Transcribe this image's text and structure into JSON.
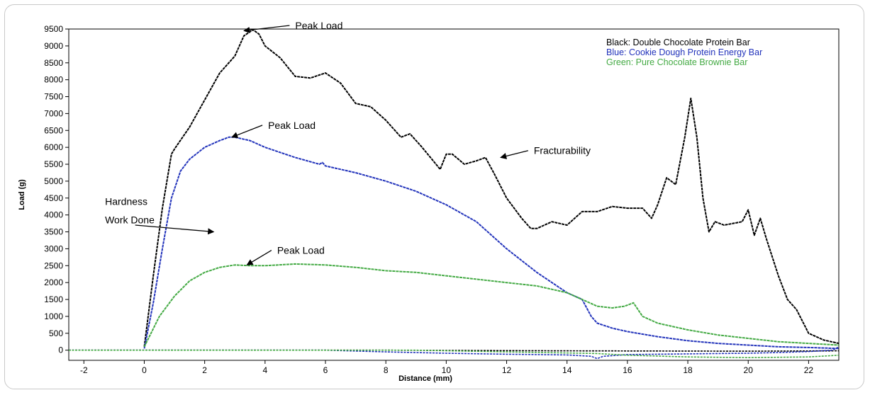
{
  "chart_data": {
    "type": "line",
    "xlabel": "Distance (mm)",
    "ylabel": "Load (g)",
    "xlim": [
      -2.5,
      23
    ],
    "ylim": [
      -300,
      9500
    ],
    "x_ticks": [
      -2,
      0,
      2,
      4,
      6,
      8,
      10,
      12,
      14,
      16,
      18,
      20,
      22
    ],
    "y_ticks": [
      0,
      500,
      1000,
      1500,
      2000,
      2500,
      3000,
      3500,
      4000,
      4500,
      5000,
      5500,
      6000,
      6500,
      7000,
      7500,
      8000,
      8500,
      9000,
      9500
    ],
    "grid": false,
    "legend_placement": "top-right",
    "legend": [
      {
        "label": "Black: Double Chocolate Protein Bar",
        "color": "#000000"
      },
      {
        "label": "Blue: Cookie Dough Protein Energy Bar",
        "color": "#2233bb"
      },
      {
        "label": "Green: Pure Chocolate Brownie Bar",
        "color": "#44aa44"
      }
    ],
    "series": [
      {
        "color": "#000000",
        "x": [
          0,
          0.3,
          0.6,
          0.9,
          1.0,
          1.5,
          2.0,
          2.5,
          3.0,
          3.3,
          3.6,
          3.8,
          4.0,
          4.5,
          5.0,
          5.5,
          6.0,
          6.5,
          7.0,
          7.5,
          8.0,
          8.5,
          8.8,
          9.2,
          9.8,
          10.0,
          10.2,
          10.6,
          11.0,
          11.3,
          11.6,
          12.0,
          12.5,
          12.8,
          13.0,
          13.5,
          14.0,
          14.5,
          15.0,
          15.5,
          16.0,
          16.5,
          16.8,
          17.0,
          17.3,
          17.6,
          17.9,
          18.1,
          18.3,
          18.5,
          18.7,
          18.9,
          19.2,
          19.5,
          19.8,
          20.0,
          20.2,
          20.4,
          20.6,
          21.0,
          21.3,
          21.6,
          22.0,
          22.5,
          23.0
        ],
        "y": [
          100,
          2200,
          4200,
          5800,
          5950,
          6600,
          7400,
          8200,
          8700,
          9300,
          9480,
          9350,
          9000,
          8650,
          8100,
          8050,
          8200,
          7900,
          7300,
          7200,
          6800,
          6300,
          6400,
          6000,
          5350,
          5800,
          5800,
          5500,
          5600,
          5700,
          5200,
          4500,
          3900,
          3600,
          3600,
          3800,
          3700,
          4100,
          4100,
          4250,
          4200,
          4200,
          3900,
          4300,
          5100,
          4900,
          6300,
          7450,
          6300,
          4500,
          3500,
          3800,
          3700,
          3750,
          3800,
          4150,
          3400,
          3900,
          3300,
          2200,
          1500,
          1200,
          500,
          300,
          200
        ]
      },
      {
        "color": "#2233bb",
        "x": [
          0,
          0.3,
          0.6,
          0.9,
          1.2,
          1.5,
          2.0,
          2.5,
          2.8,
          3.0,
          3.5,
          4.0,
          5.0,
          5.8,
          5.9,
          6.0,
          7.0,
          8.0,
          9.0,
          10.0,
          11.0,
          12.0,
          13.0,
          14.0,
          14.5,
          14.8,
          15.0,
          15.5,
          16.0,
          17.0,
          18.0,
          19.0,
          20.0,
          21.0,
          22.0,
          23.0
        ],
        "y": [
          50,
          1400,
          3000,
          4500,
          5300,
          5650,
          6000,
          6200,
          6300,
          6300,
          6200,
          6000,
          5700,
          5500,
          5550,
          5450,
          5250,
          5000,
          4700,
          4300,
          3800,
          3000,
          2300,
          1700,
          1500,
          1000,
          800,
          650,
          550,
          400,
          280,
          200,
          150,
          100,
          80,
          50
        ]
      },
      {
        "color": "#44aa44",
        "x": [
          0,
          0.5,
          1.0,
          1.5,
          2.0,
          2.5,
          3.0,
          3.5,
          4.0,
          5.0,
          6.0,
          7.0,
          8.0,
          9.0,
          10.0,
          11.0,
          12.0,
          13.0,
          14.0,
          14.5,
          15.0,
          15.5,
          15.9,
          16.2,
          16.5,
          17.0,
          18.0,
          19.0,
          20.0,
          21.0,
          22.0,
          23.0
        ],
        "y": [
          100,
          1000,
          1600,
          2050,
          2300,
          2450,
          2520,
          2500,
          2500,
          2550,
          2520,
          2450,
          2350,
          2300,
          2200,
          2100,
          2000,
          1900,
          1700,
          1500,
          1300,
          1250,
          1300,
          1400,
          1000,
          800,
          600,
          450,
          350,
          250,
          200,
          150
        ]
      }
    ],
    "return_curves": [
      {
        "color": "#000000",
        "x": [
          -2.5,
          8.0,
          14.0,
          20.0,
          23.0
        ],
        "y": [
          0,
          0,
          -20,
          -30,
          -20
        ]
      },
      {
        "color": "#2233bb",
        "x": [
          -2.5,
          6.0,
          8.0,
          10.0,
          12.0,
          14.0,
          14.8,
          15.0,
          15.2,
          16.0,
          17.0,
          18.0,
          19.0,
          20.0,
          21.0,
          22.0,
          22.8,
          23.0
        ],
        "y": [
          0,
          0,
          -50,
          -90,
          -120,
          -140,
          -180,
          -250,
          -180,
          -130,
          -120,
          -110,
          -100,
          -90,
          -70,
          -40,
          0,
          100
        ]
      },
      {
        "color": "#44aa44",
        "x": [
          -2.5,
          9.0,
          12.0,
          15.0,
          16.0,
          18.0,
          20.0,
          22.0,
          23.0
        ],
        "y": [
          0,
          0,
          -50,
          -100,
          -150,
          -200,
          -220,
          -200,
          -150
        ]
      }
    ],
    "annotations": [
      {
        "text": "Peak Load",
        "x": 3.3,
        "y": 9450,
        "tx": 5.0,
        "ty": 9500
      },
      {
        "text": "Peak Load",
        "x": 2.9,
        "y": 6300,
        "tx": 4.1,
        "ty": 6550
      },
      {
        "text": "Peak Load",
        "x": 3.4,
        "y": 2520,
        "tx": 4.4,
        "ty": 2850
      },
      {
        "text": "Fracturability",
        "x": 11.8,
        "y": 5700,
        "tx": 12.9,
        "ty": 5800
      },
      {
        "text": "Hardness",
        "tx": -1.3,
        "ty": 4300
      },
      {
        "text": "Work Done",
        "tx": -1.3,
        "ty": 3750,
        "x": 2.3,
        "y": 3500,
        "fx": -0.3,
        "fy": 3700
      }
    ]
  }
}
